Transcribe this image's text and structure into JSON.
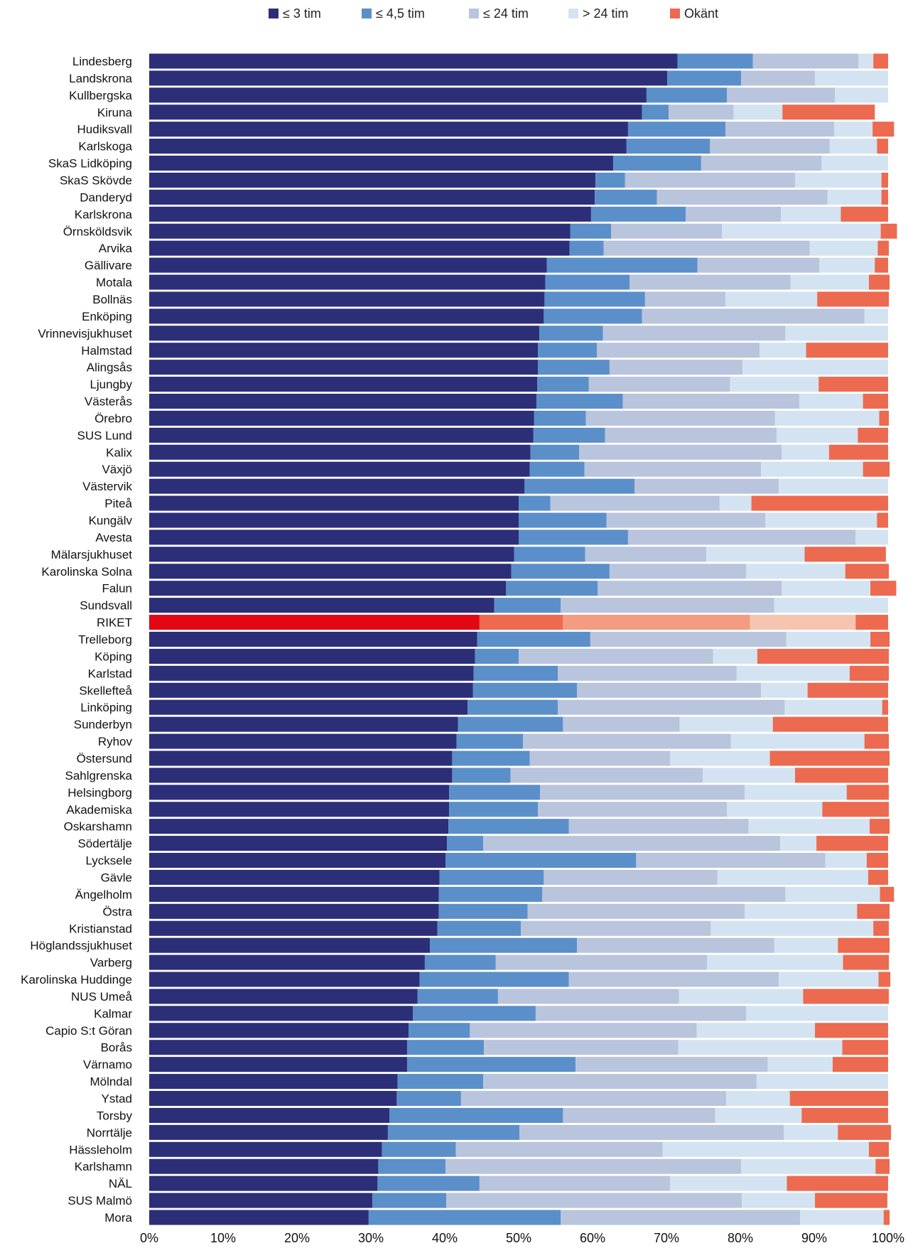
{
  "chart_data": {
    "type": "bar",
    "orientation": "horizontal",
    "stacked": true,
    "xlim": [
      0,
      100
    ],
    "x_ticks": [
      "0%",
      "10%",
      "20%",
      "30%",
      "40%",
      "50%",
      "60%",
      "70%",
      "80%",
      "90%",
      "100%"
    ],
    "legend_position": "top",
    "grid": false,
    "highlight": {
      "category": "RIKET",
      "colors": [
        "#e30613",
        "#ee6a4e",
        "#f39c82",
        "#f8c4b2",
        "#ee6a4e"
      ]
    },
    "categories": [
      "Lindesberg",
      "Landskrona",
      "Kullbergska",
      "Kiruna",
      "Hudiksvall",
      "Karlskoga",
      "SkaS Lidköping",
      "SkaS Skövde",
      "Danderyd",
      "Karlskrona",
      "Örnsköldsvik",
      "Arvika",
      "Gällivare",
      "Motala",
      "Bollnäs",
      "Enköping",
      "Vrinnevisjukhuset",
      "Halmstad",
      "Alingsås",
      "Ljungby",
      "Västerås",
      "Örebro",
      "SUS Lund",
      "Kalix",
      "Växjö",
      "Västervik",
      "Piteå",
      "Kungälv",
      "Avesta",
      "Mälarsjukhuset",
      "Karolinska Solna",
      "Falun",
      "Sundsvall",
      "RIKET",
      "Trelleborg",
      "Köping",
      "Karlstad",
      "Skellefteå",
      "Linköping",
      "Sunderbyn",
      "Ryhov",
      "Östersund",
      "Sahlgrenska",
      "Helsingborg",
      "Akademiska",
      "Oskarshamn",
      "Södertälje",
      "Lycksele",
      "Gävle",
      "Ängelholm",
      "Östra",
      "Kristianstad",
      "Höglandssjukhuset",
      "Varberg",
      "Karolinska Huddinge",
      "NUS Umeå",
      "Kalmar",
      "Capio S:t Göran",
      "Borås",
      "Värnamo",
      "Mölndal",
      "Ystad",
      "Torsby",
      "Norrtälje",
      "Hässleholm",
      "Karlshamn",
      "NÄL",
      "SUS Malmö",
      "Mora"
    ],
    "series": [
      {
        "name": "≤ 3 tim",
        "color": "#2c2e78",
        "values": [
          71.5,
          70.1,
          67.3,
          66.7,
          64.8,
          64.6,
          62.8,
          60.4,
          60.3,
          59.8,
          57.0,
          56.9,
          53.8,
          53.6,
          53.5,
          53.4,
          52.8,
          52.6,
          52.6,
          52.5,
          52.4,
          52.1,
          52.0,
          51.6,
          51.5,
          50.8,
          50.0,
          50.0,
          50.0,
          49.4,
          49.0,
          48.3,
          46.7,
          44.7,
          44.4,
          44.1,
          43.9,
          43.8,
          43.1,
          41.8,
          41.6,
          41.0,
          41.0,
          40.6,
          40.6,
          40.5,
          40.3,
          40.1,
          39.3,
          39.2,
          39.2,
          39.0,
          38.0,
          37.3,
          36.6,
          36.3,
          35.7,
          35.1,
          34.9,
          34.9,
          33.6,
          33.5,
          32.5,
          32.3,
          31.5,
          31.0,
          30.9,
          30.2,
          29.7
        ]
      },
      {
        "name": "≤ 4,5 tim",
        "color": "#5b8fc9",
        "values": [
          10.2,
          10.0,
          10.9,
          3.6,
          13.2,
          11.3,
          11.9,
          4.0,
          8.4,
          12.8,
          5.5,
          4.6,
          20.4,
          11.4,
          13.6,
          13.3,
          8.6,
          8.0,
          9.7,
          7.0,
          11.7,
          7.0,
          9.7,
          6.6,
          7.4,
          14.9,
          4.3,
          11.9,
          14.8,
          9.6,
          13.3,
          12.4,
          9.0,
          11.3,
          15.3,
          5.9,
          11.4,
          14.1,
          12.2,
          14.2,
          9.0,
          10.5,
          7.9,
          12.3,
          12.0,
          16.3,
          4.9,
          25.8,
          14.1,
          14.0,
          12.0,
          11.3,
          19.9,
          9.6,
          20.2,
          10.9,
          16.6,
          8.3,
          10.4,
          22.8,
          11.6,
          8.7,
          23.5,
          17.8,
          10.0,
          9.1,
          13.8,
          10.0,
          26.0
        ]
      },
      {
        "name": "≤ 24 tim",
        "color": "#b9c4dd",
        "values": [
          14.3,
          10.0,
          14.6,
          8.8,
          14.7,
          16.2,
          16.3,
          23.0,
          23.1,
          12.9,
          15.0,
          27.9,
          16.5,
          21.8,
          10.9,
          30.1,
          24.7,
          22.0,
          18.0,
          19.1,
          23.9,
          25.6,
          23.2,
          27.4,
          23.9,
          19.5,
          22.9,
          21.5,
          30.8,
          16.4,
          18.5,
          24.9,
          28.9,
          25.3,
          26.5,
          26.3,
          24.2,
          24.9,
          30.7,
          15.8,
          28.1,
          19.0,
          26.0,
          27.7,
          25.6,
          24.3,
          40.2,
          25.6,
          23.5,
          32.9,
          29.4,
          25.7,
          26.7,
          28.6,
          28.4,
          24.5,
          28.5,
          30.7,
          26.3,
          26.0,
          37.0,
          35.9,
          20.6,
          35.8,
          28.0,
          40.0,
          25.8,
          40.0,
          32.4
        ]
      },
      {
        "name": "> 24 tim",
        "color": "#d3e3f1",
        "values": [
          2.0,
          9.9,
          7.2,
          6.6,
          5.2,
          6.4,
          9.0,
          11.7,
          7.3,
          8.1,
          21.5,
          9.2,
          7.5,
          10.6,
          12.4,
          3.2,
          13.9,
          6.3,
          19.7,
          12.0,
          8.6,
          14.1,
          11.0,
          6.4,
          13.8,
          14.8,
          4.3,
          15.1,
          4.4,
          13.3,
          13.4,
          12.0,
          15.4,
          14.3,
          11.4,
          6.0,
          15.3,
          6.3,
          13.2,
          12.6,
          18.1,
          13.5,
          12.5,
          13.8,
          12.9,
          16.4,
          4.9,
          5.6,
          20.4,
          12.8,
          15.2,
          22.0,
          8.6,
          18.4,
          13.5,
          16.8,
          19.2,
          16.0,
          22.2,
          8.8,
          17.8,
          8.6,
          11.7,
          7.3,
          27.9,
          18.2,
          15.8,
          9.9,
          11.3
        ]
      },
      {
        "name": "Okänt",
        "color": "#ec6a4f",
        "values": [
          2.0,
          0.0,
          0.0,
          12.5,
          2.9,
          1.5,
          0.0,
          0.9,
          0.9,
          6.4,
          2.2,
          1.5,
          1.8,
          2.8,
          9.7,
          0.0,
          0.0,
          11.1,
          0.0,
          9.4,
          3.4,
          1.3,
          4.1,
          8.0,
          3.6,
          0.0,
          18.5,
          1.5,
          0.0,
          11.0,
          5.9,
          3.5,
          0.0,
          4.4,
          2.6,
          17.8,
          5.3,
          10.9,
          0.8,
          15.6,
          3.3,
          16.2,
          12.6,
          5.7,
          9.0,
          2.7,
          9.7,
          2.9,
          2.7,
          1.9,
          4.4,
          2.1,
          7.0,
          6.2,
          1.6,
          11.6,
          0.0,
          9.9,
          6.2,
          7.5,
          0.0,
          13.3,
          11.7,
          7.2,
          2.7,
          1.9,
          13.7,
          9.8,
          0.8
        ]
      }
    ]
  }
}
